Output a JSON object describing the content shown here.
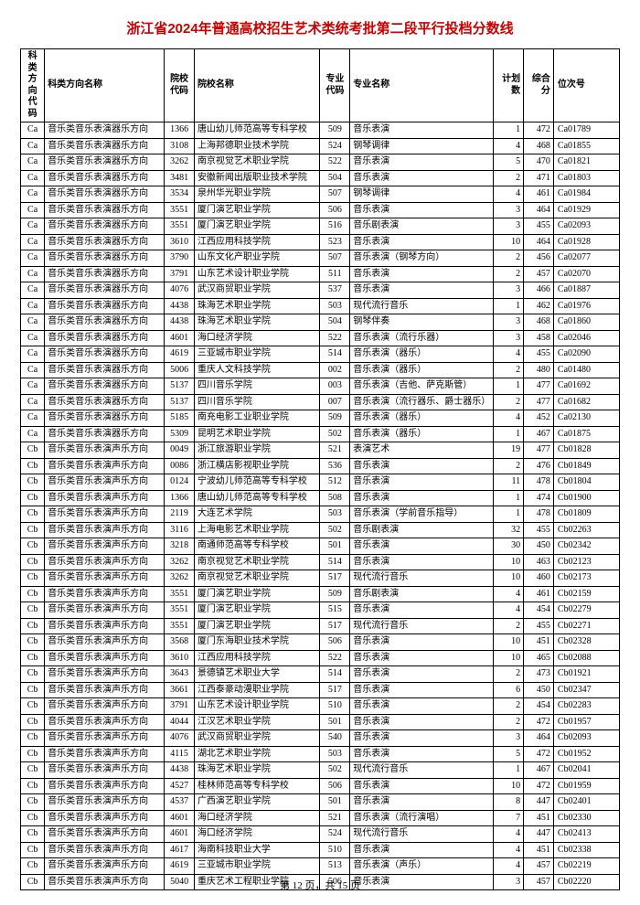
{
  "title": "浙江省2024年普通高校招生艺术类统考批第二段平行投档分数线",
  "headers": [
    "科类方向代码",
    "科类方向名称",
    "院校代码",
    "院校名称",
    "专业代码",
    "专业名称",
    "计划数",
    "综合分",
    "位次号"
  ],
  "footer": "第 12 页，共 15 页",
  "rows": [
    [
      "Ca",
      "音乐类音乐表演器乐方向",
      "1366",
      "唐山幼儿师范高等专科学校",
      "509",
      "音乐表演",
      "1",
      "472",
      "Ca01789"
    ],
    [
      "Ca",
      "音乐类音乐表演器乐方向",
      "3108",
      "上海邦德职业技术学院",
      "524",
      "钢琴调律",
      "4",
      "468",
      "Ca01855"
    ],
    [
      "Ca",
      "音乐类音乐表演器乐方向",
      "3262",
      "南京视觉艺术职业学院",
      "522",
      "音乐表演",
      "5",
      "470",
      "Ca01821"
    ],
    [
      "Ca",
      "音乐类音乐表演器乐方向",
      "3481",
      "安徽新闻出版职业技术学院",
      "504",
      "音乐表演",
      "2",
      "471",
      "Ca01803"
    ],
    [
      "Ca",
      "音乐类音乐表演器乐方向",
      "3534",
      "泉州华光职业学院",
      "507",
      "钢琴调律",
      "4",
      "461",
      "Ca01984"
    ],
    [
      "Ca",
      "音乐类音乐表演器乐方向",
      "3551",
      "厦门演艺职业学院",
      "506",
      "音乐表演",
      "3",
      "464",
      "Ca01929"
    ],
    [
      "Ca",
      "音乐类音乐表演器乐方向",
      "3551",
      "厦门演艺职业学院",
      "516",
      "音乐剧表演",
      "3",
      "455",
      "Ca02093"
    ],
    [
      "Ca",
      "音乐类音乐表演器乐方向",
      "3610",
      "江西应用科技学院",
      "523",
      "音乐表演",
      "10",
      "464",
      "Ca01928"
    ],
    [
      "Ca",
      "音乐类音乐表演器乐方向",
      "3790",
      "山东文化产职业学院",
      "507",
      "音乐表演（钢琴方向）",
      "2",
      "456",
      "Ca02077"
    ],
    [
      "Ca",
      "音乐类音乐表演器乐方向",
      "3791",
      "山东艺术设计职业学院",
      "511",
      "音乐表演",
      "2",
      "457",
      "Ca02070"
    ],
    [
      "Ca",
      "音乐类音乐表演器乐方向",
      "4076",
      "武汉商贸职业学院",
      "537",
      "音乐表演",
      "3",
      "466",
      "Ca01887"
    ],
    [
      "Ca",
      "音乐类音乐表演器乐方向",
      "4438",
      "珠海艺术职业学院",
      "503",
      "现代流行音乐",
      "1",
      "462",
      "Ca01976"
    ],
    [
      "Ca",
      "音乐类音乐表演器乐方向",
      "4438",
      "珠海艺术职业学院",
      "504",
      "钢琴伴奏",
      "3",
      "468",
      "Ca01860"
    ],
    [
      "Ca",
      "音乐类音乐表演器乐方向",
      "4601",
      "海口经济学院",
      "522",
      "音乐表演（流行乐器）",
      "3",
      "458",
      "Ca02046"
    ],
    [
      "Ca",
      "音乐类音乐表演器乐方向",
      "4619",
      "三亚城市职业学院",
      "514",
      "音乐表演（器乐）",
      "4",
      "455",
      "Ca02090"
    ],
    [
      "Ca",
      "音乐类音乐表演器乐方向",
      "5006",
      "重庆人文科技学院",
      "002",
      "音乐表演（器乐）",
      "2",
      "480",
      "Ca01480"
    ],
    [
      "Ca",
      "音乐类音乐表演器乐方向",
      "5137",
      "四川音乐学院",
      "003",
      "音乐表演（吉他、萨克斯管）",
      "1",
      "477",
      "Ca01692"
    ],
    [
      "Ca",
      "音乐类音乐表演器乐方向",
      "5137",
      "四川音乐学院",
      "007",
      "音乐表演（流行器乐、爵士器乐）",
      "2",
      "477",
      "Ca01682"
    ],
    [
      "Ca",
      "音乐类音乐表演器乐方向",
      "5185",
      "南充电影工业职业学院",
      "509",
      "音乐表演（器乐）",
      "4",
      "452",
      "Ca02130"
    ],
    [
      "Ca",
      "音乐类音乐表演器乐方向",
      "5309",
      "昆明艺术职业学院",
      "502",
      "音乐表演（器乐）",
      "1",
      "467",
      "Ca01875"
    ],
    [
      "Cb",
      "音乐类音乐表演声乐方向",
      "0049",
      "浙江旅游职业学院",
      "521",
      "表演艺术",
      "19",
      "477",
      "Cb01828"
    ],
    [
      "Cb",
      "音乐类音乐表演声乐方向",
      "0086",
      "浙江横店影视职业学院",
      "536",
      "音乐表演",
      "2",
      "476",
      "Cb01849"
    ],
    [
      "Cb",
      "音乐类音乐表演声乐方向",
      "0124",
      "宁波幼儿师范高等专科学校",
      "512",
      "音乐表演",
      "11",
      "478",
      "Cb01804"
    ],
    [
      "Cb",
      "音乐类音乐表演声乐方向",
      "1366",
      "唐山幼儿师范高等专科学校",
      "508",
      "音乐表演",
      "1",
      "474",
      "Cb01900"
    ],
    [
      "Cb",
      "音乐类音乐表演声乐方向",
      "2119",
      "大连艺术学院",
      "503",
      "音乐表演（学前音乐指导）",
      "1",
      "478",
      "Cb01809"
    ],
    [
      "Cb",
      "音乐类音乐表演声乐方向",
      "3116",
      "上海电影艺术职业学院",
      "502",
      "音乐剧表演",
      "32",
      "455",
      "Cb02263"
    ],
    [
      "Cb",
      "音乐类音乐表演声乐方向",
      "3218",
      "南通师范高等专科学校",
      "501",
      "音乐表演",
      "30",
      "450",
      "Cb02342"
    ],
    [
      "Cb",
      "音乐类音乐表演声乐方向",
      "3262",
      "南京视觉艺术职业学院",
      "514",
      "音乐表演",
      "10",
      "463",
      "Cb02123"
    ],
    [
      "Cb",
      "音乐类音乐表演声乐方向",
      "3262",
      "南京视觉艺术职业学院",
      "517",
      "现代流行音乐",
      "10",
      "460",
      "Cb02173"
    ],
    [
      "Cb",
      "音乐类音乐表演声乐方向",
      "3551",
      "厦门演艺职业学院",
      "509",
      "音乐剧表演",
      "4",
      "461",
      "Cb02159"
    ],
    [
      "Cb",
      "音乐类音乐表演声乐方向",
      "3551",
      "厦门演艺职业学院",
      "515",
      "音乐表演",
      "4",
      "454",
      "Cb02279"
    ],
    [
      "Cb",
      "音乐类音乐表演声乐方向",
      "3551",
      "厦门演艺职业学院",
      "517",
      "现代流行音乐",
      "2",
      "455",
      "Cb02271"
    ],
    [
      "Cb",
      "音乐类音乐表演声乐方向",
      "3568",
      "厦门东海职业技术学院",
      "506",
      "音乐表演",
      "10",
      "451",
      "Cb02328"
    ],
    [
      "Cb",
      "音乐类音乐表演声乐方向",
      "3610",
      "江西应用科技学院",
      "522",
      "音乐表演",
      "10",
      "465",
      "Cb02088"
    ],
    [
      "Cb",
      "音乐类音乐表演声乐方向",
      "3643",
      "景德镇艺术职业大学",
      "514",
      "音乐表演",
      "2",
      "473",
      "Cb01921"
    ],
    [
      "Cb",
      "音乐类音乐表演声乐方向",
      "3661",
      "江西泰豪动漫职业学院",
      "517",
      "音乐表演",
      "6",
      "450",
      "Cb02347"
    ],
    [
      "Cb",
      "音乐类音乐表演声乐方向",
      "3791",
      "山东艺术设计职业学院",
      "510",
      "音乐表演",
      "2",
      "454",
      "Cb02283"
    ],
    [
      "Cb",
      "音乐类音乐表演声乐方向",
      "4044",
      "江汉艺术职业学院",
      "501",
      "音乐表演",
      "2",
      "472",
      "Cb01957"
    ],
    [
      "Cb",
      "音乐类音乐表演声乐方向",
      "4076",
      "武汉商贸职业学院",
      "540",
      "音乐表演",
      "3",
      "464",
      "Cb02093"
    ],
    [
      "Cb",
      "音乐类音乐表演声乐方向",
      "4115",
      "湖北艺术职业学院",
      "503",
      "音乐表演",
      "5",
      "472",
      "Cb01952"
    ],
    [
      "Cb",
      "音乐类音乐表演声乐方向",
      "4438",
      "珠海艺术职业学院",
      "502",
      "现代流行音乐",
      "1",
      "467",
      "Cb02041"
    ],
    [
      "Cb",
      "音乐类音乐表演声乐方向",
      "4527",
      "桂林师范高等专科学校",
      "506",
      "音乐表演",
      "10",
      "472",
      "Cb01959"
    ],
    [
      "Cb",
      "音乐类音乐表演声乐方向",
      "4537",
      "广西演艺职业学院",
      "501",
      "音乐表演",
      "8",
      "447",
      "Cb02401"
    ],
    [
      "Cb",
      "音乐类音乐表演声乐方向",
      "4601",
      "海口经济学院",
      "521",
      "音乐表演（流行演唱）",
      "7",
      "451",
      "Cb02330"
    ],
    [
      "Cb",
      "音乐类音乐表演声乐方向",
      "4601",
      "海口经济学院",
      "524",
      "现代流行音乐",
      "4",
      "447",
      "Cb02413"
    ],
    [
      "Cb",
      "音乐类音乐表演声乐方向",
      "4617",
      "海南科技职业大学",
      "510",
      "音乐表演",
      "4",
      "451",
      "Cb02338"
    ],
    [
      "Cb",
      "音乐类音乐表演声乐方向",
      "4619",
      "三亚城市职业学院",
      "513",
      "音乐表演（声乐）",
      "4",
      "457",
      "Cb02219"
    ],
    [
      "Cb",
      "音乐类音乐表演声乐方向",
      "5040",
      "重庆艺术工程职业学院",
      "506",
      "音乐表演",
      "3",
      "457",
      "Cb02220"
    ]
  ]
}
